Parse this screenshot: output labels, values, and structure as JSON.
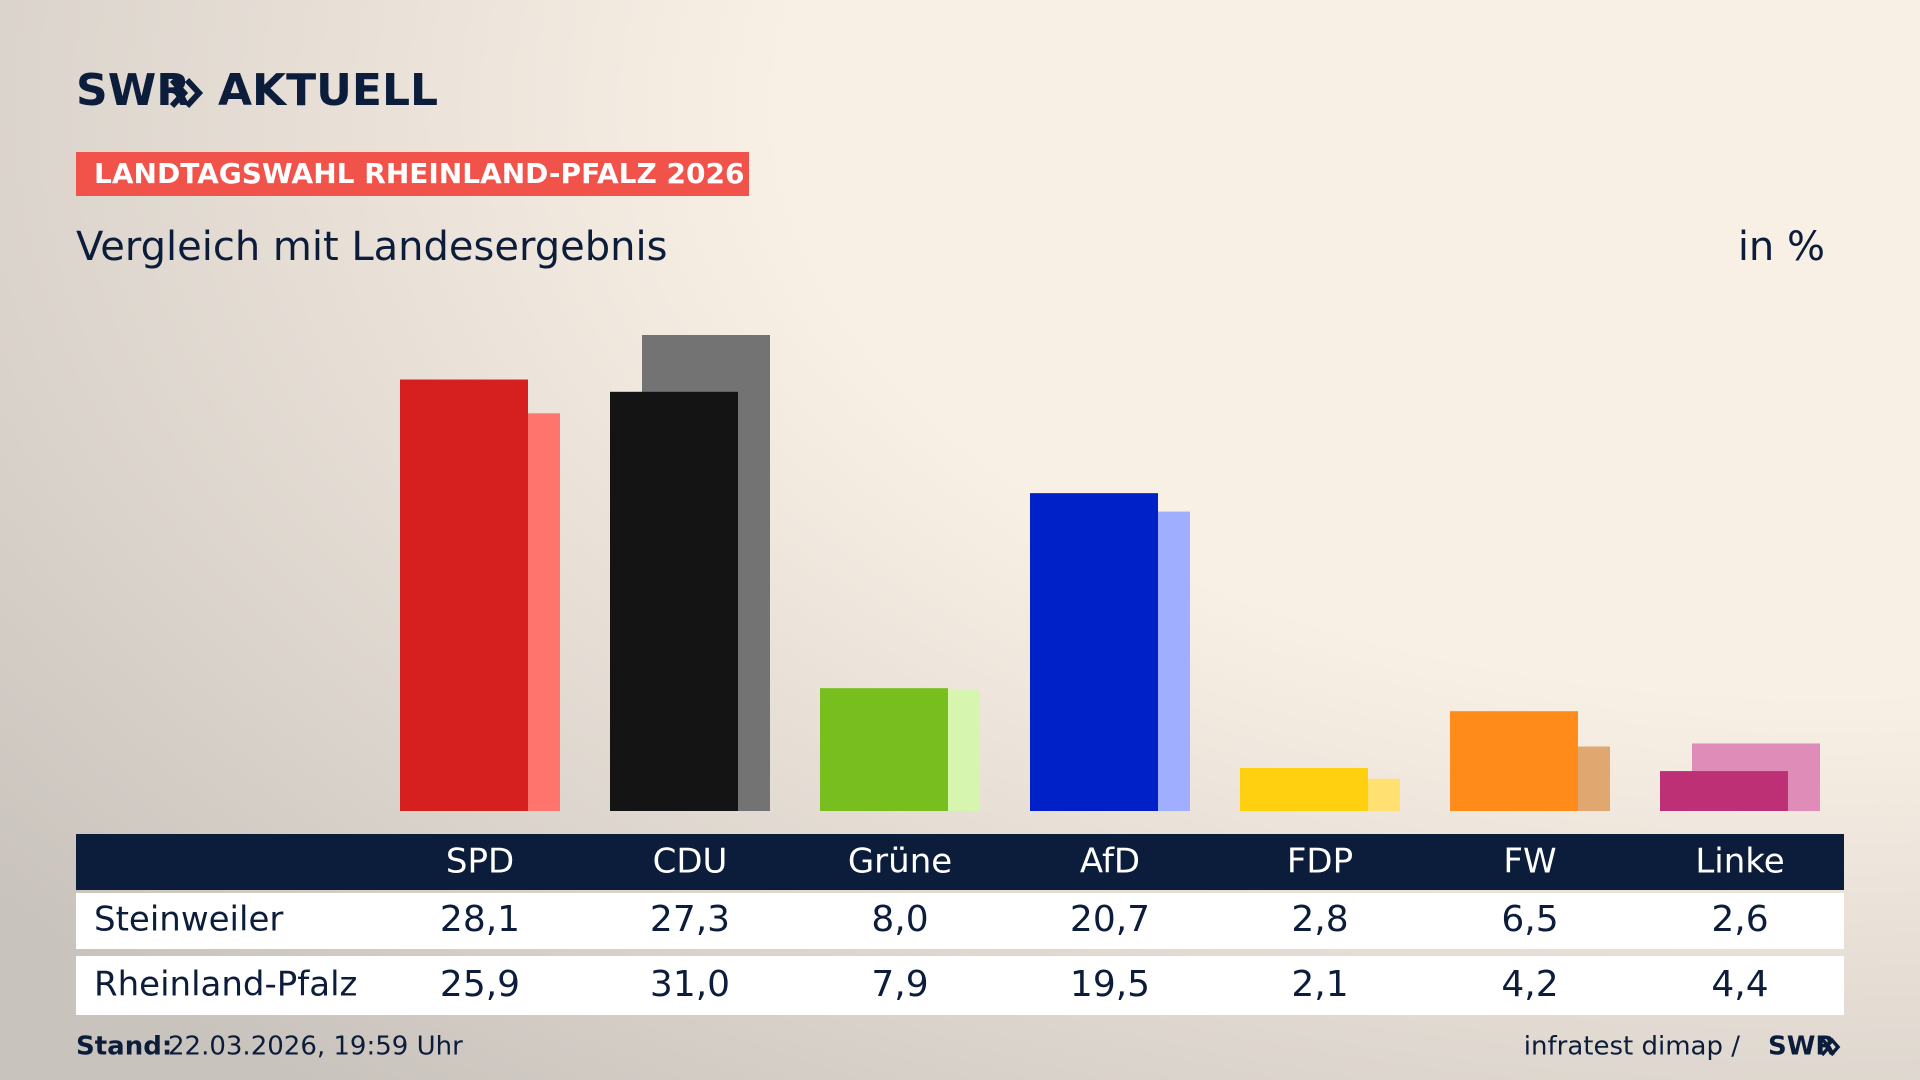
{
  "header": {
    "brand": "SWR",
    "section": "AKTUELL",
    "badge": "LANDTAGSWAHL RHEINLAND-PFALZ 2026"
  },
  "chart_data": {
    "type": "bar",
    "title": "Vergleich mit Landesergebnis",
    "unit_label": "in %",
    "categories": [
      "SPD",
      "CDU",
      "Grüne",
      "AfD",
      "FDP",
      "FW",
      "Linke"
    ],
    "series": [
      {
        "name": "Steinweiler",
        "colors": [
          "#d62020",
          "#141414",
          "#78be1e",
          "#0020c8",
          "#ffd010",
          "#ff8c1a",
          "#be3075"
        ],
        "values": [
          28.1,
          27.3,
          8.0,
          20.7,
          2.8,
          6.5,
          2.6
        ],
        "value_labels": [
          "28,1",
          "27,3",
          "8,0",
          "20,7",
          "2,8",
          "6,5",
          "2,6"
        ]
      },
      {
        "name": "Rheinland-Pfalz",
        "colors": [
          "#ff756e",
          "#737373",
          "#d6f5ae",
          "#a0aeff",
          "#ffe070",
          "#e0a870",
          "#e08cb8"
        ],
        "values": [
          25.9,
          31.0,
          7.9,
          19.5,
          2.1,
          4.2,
          4.4
        ],
        "value_labels": [
          "25,9",
          "31,0",
          "7,9",
          "19,5",
          "2,1",
          "4,2",
          "4,4"
        ]
      }
    ]
  },
  "footer": {
    "stand_label": "Stand:",
    "stand": "22.03.2026, 19:59 Uhr",
    "source": "infratest dimap /",
    "brand": "SWR"
  }
}
